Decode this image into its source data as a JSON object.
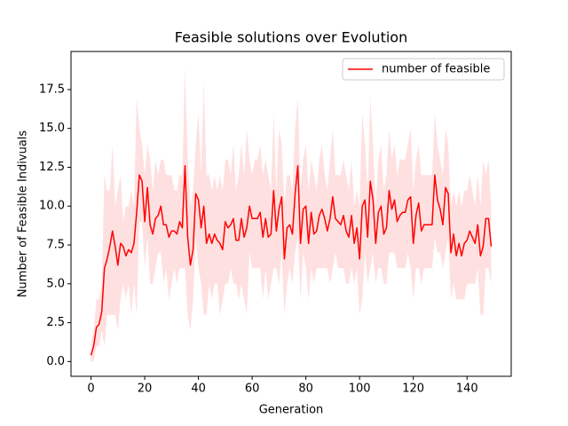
{
  "chart_data": {
    "type": "line",
    "title": "Feasible solutions over Evolution",
    "x_label": "Generation",
    "y_label": "Number of Feasible Indivuals",
    "x": [
      0,
      1,
      2,
      3,
      4,
      5,
      6,
      7,
      8,
      9,
      10,
      11,
      12,
      13,
      14,
      15,
      16,
      17,
      18,
      19,
      20,
      21,
      22,
      23,
      24,
      25,
      26,
      27,
      28,
      29,
      30,
      31,
      32,
      33,
      34,
      35,
      36,
      37,
      38,
      39,
      40,
      41,
      42,
      43,
      44,
      45,
      46,
      47,
      48,
      49,
      50,
      51,
      52,
      53,
      54,
      55,
      56,
      57,
      58,
      59,
      60,
      61,
      62,
      63,
      64,
      65,
      66,
      67,
      68,
      69,
      70,
      71,
      72,
      73,
      74,
      75,
      76,
      77,
      78,
      79,
      80,
      81,
      82,
      83,
      84,
      85,
      86,
      87,
      88,
      89,
      90,
      91,
      92,
      93,
      94,
      95,
      96,
      97,
      98,
      99,
      100,
      101,
      102,
      103,
      104,
      105,
      106,
      107,
      108,
      109,
      110,
      111,
      112,
      113,
      114,
      115,
      116,
      117,
      118,
      119,
      120,
      121,
      122,
      123,
      124,
      125,
      126,
      127,
      128,
      129,
      130,
      131,
      132,
      133,
      134,
      135,
      136,
      137,
      138,
      139,
      140,
      141,
      142,
      143,
      144,
      145,
      146,
      147,
      148,
      149
    ],
    "series": [
      {
        "name": "number of feasible",
        "color": "#ff0000",
        "values": [
          0.4,
          1.0,
          2.2,
          2.4,
          3.2,
          6.0,
          6.6,
          7.4,
          8.4,
          7.4,
          6.2,
          7.6,
          7.4,
          6.8,
          7.2,
          7.0,
          7.6,
          9.6,
          12.0,
          11.6,
          9.0,
          11.2,
          8.8,
          8.2,
          9.2,
          9.4,
          10.0,
          8.8,
          8.8,
          8.0,
          8.4,
          8.4,
          8.2,
          9.0,
          8.6,
          12.6,
          8.0,
          6.2,
          7.2,
          10.8,
          10.4,
          8.6,
          10.0,
          7.6,
          8.2,
          7.6,
          8.2,
          7.8,
          7.6,
          7.2,
          9.0,
          8.6,
          8.8,
          9.2,
          7.8,
          7.8,
          9.2,
          8.0,
          8.6,
          10.0,
          9.2,
          9.2,
          9.2,
          9.6,
          8.0,
          9.2,
          8.0,
          8.2,
          11.0,
          8.4,
          9.8,
          10.6,
          6.6,
          8.6,
          8.8,
          8.2,
          10.8,
          12.6,
          7.6,
          9.8,
          10.0,
          7.6,
          9.6,
          8.2,
          8.4,
          9.4,
          9.8,
          9.2,
          8.4,
          9.2,
          10.6,
          9.2,
          9.0,
          8.8,
          9.4,
          8.4,
          8.0,
          9.4,
          7.6,
          8.6,
          6.6,
          10.0,
          10.4,
          8.0,
          11.6,
          10.4,
          7.6,
          9.6,
          10.0,
          8.2,
          8.6,
          11.0,
          9.8,
          10.4,
          9.0,
          9.4,
          9.6,
          9.6,
          10.4,
          10.6,
          7.6,
          9.4,
          10.2,
          8.4,
          8.8,
          8.8,
          8.8,
          8.8,
          12.0,
          10.4,
          9.8,
          8.8,
          11.2,
          10.8,
          7.0,
          8.2,
          6.8,
          7.6,
          6.8,
          7.6,
          7.8,
          8.4,
          8.0,
          7.6,
          8.8,
          6.8,
          7.4,
          9.2,
          9.2,
          7.4
        ],
        "upper": [
          1,
          2,
          4,
          4,
          5,
          12,
          11,
          11,
          14,
          10,
          11,
          12,
          9,
          10,
          10,
          11,
          10,
          17,
          15,
          14,
          12,
          14,
          13,
          11,
          13,
          12,
          13,
          13,
          12,
          12,
          12,
          11,
          11,
          12,
          12,
          19,
          13,
          10,
          11,
          14,
          16,
          12,
          18,
          12,
          12,
          11,
          12,
          11,
          12,
          11,
          13,
          13,
          12,
          14,
          11,
          12,
          14,
          12,
          15,
          13,
          12,
          13,
          13,
          14,
          12,
          13,
          12,
          11,
          16,
          11,
          15,
          14,
          10,
          12,
          12,
          11,
          15,
          17,
          11,
          13,
          14,
          11,
          13,
          12,
          11,
          13,
          14,
          12,
          11,
          13,
          15,
          12,
          12,
          12,
          13,
          12,
          11,
          13,
          10,
          11,
          10,
          16,
          14,
          11,
          17,
          14,
          10,
          13,
          14,
          11,
          12,
          15,
          13,
          14,
          12,
          13,
          13,
          13,
          14,
          15,
          11,
          13,
          14,
          12,
          12,
          12,
          12,
          12,
          16,
          14,
          13,
          12,
          15,
          14,
          10,
          11,
          10,
          11,
          10,
          11,
          11,
          12,
          11,
          10,
          12,
          10,
          13,
          12,
          13,
          10
        ],
        "lower": [
          0,
          0,
          1,
          1,
          2,
          1,
          3,
          3,
          3,
          3,
          2,
          4,
          5,
          4,
          5,
          3,
          5,
          3,
          9,
          9,
          6,
          8,
          5,
          5,
          6,
          7,
          7,
          5,
          6,
          4,
          5,
          6,
          5,
          6,
          6,
          6,
          3,
          2,
          4,
          8,
          6,
          5,
          3,
          3,
          5,
          4,
          5,
          5,
          3,
          4,
          5,
          5,
          6,
          5,
          5,
          4,
          5,
          4,
          3,
          7,
          6,
          6,
          6,
          6,
          4,
          6,
          4,
          5,
          6,
          6,
          5,
          7,
          3,
          5,
          6,
          5,
          7,
          8,
          4,
          7,
          6,
          4,
          6,
          5,
          6,
          6,
          6,
          6,
          6,
          5,
          6,
          7,
          6,
          6,
          6,
          5,
          5,
          6,
          5,
          6,
          3,
          4,
          7,
          5,
          6,
          7,
          5,
          6,
          6,
          5,
          5,
          7,
          7,
          7,
          6,
          6,
          6,
          6,
          7,
          6,
          4,
          6,
          6,
          5,
          6,
          6,
          6,
          6,
          8,
          7,
          7,
          6,
          7,
          8,
          4,
          5,
          4,
          4,
          4,
          4,
          5,
          5,
          5,
          5,
          6,
          3,
          3,
          6,
          6,
          5
        ]
      }
    ],
    "xlim": [
      -7.45,
      156.45
    ],
    "ylim": [
      -0.95,
      19.95
    ],
    "xticks": [
      0,
      20,
      40,
      60,
      80,
      100,
      120,
      140
    ],
    "yticks": [
      {
        "value": 0,
        "label": "0.0"
      },
      2.5,
      {
        "value": 5,
        "label": "5.0"
      },
      7.5,
      {
        "value": 10,
        "label": "10.0"
      },
      12.5,
      {
        "value": 15,
        "label": "15.0"
      },
      17.5
    ],
    "legend": "upper right"
  }
}
